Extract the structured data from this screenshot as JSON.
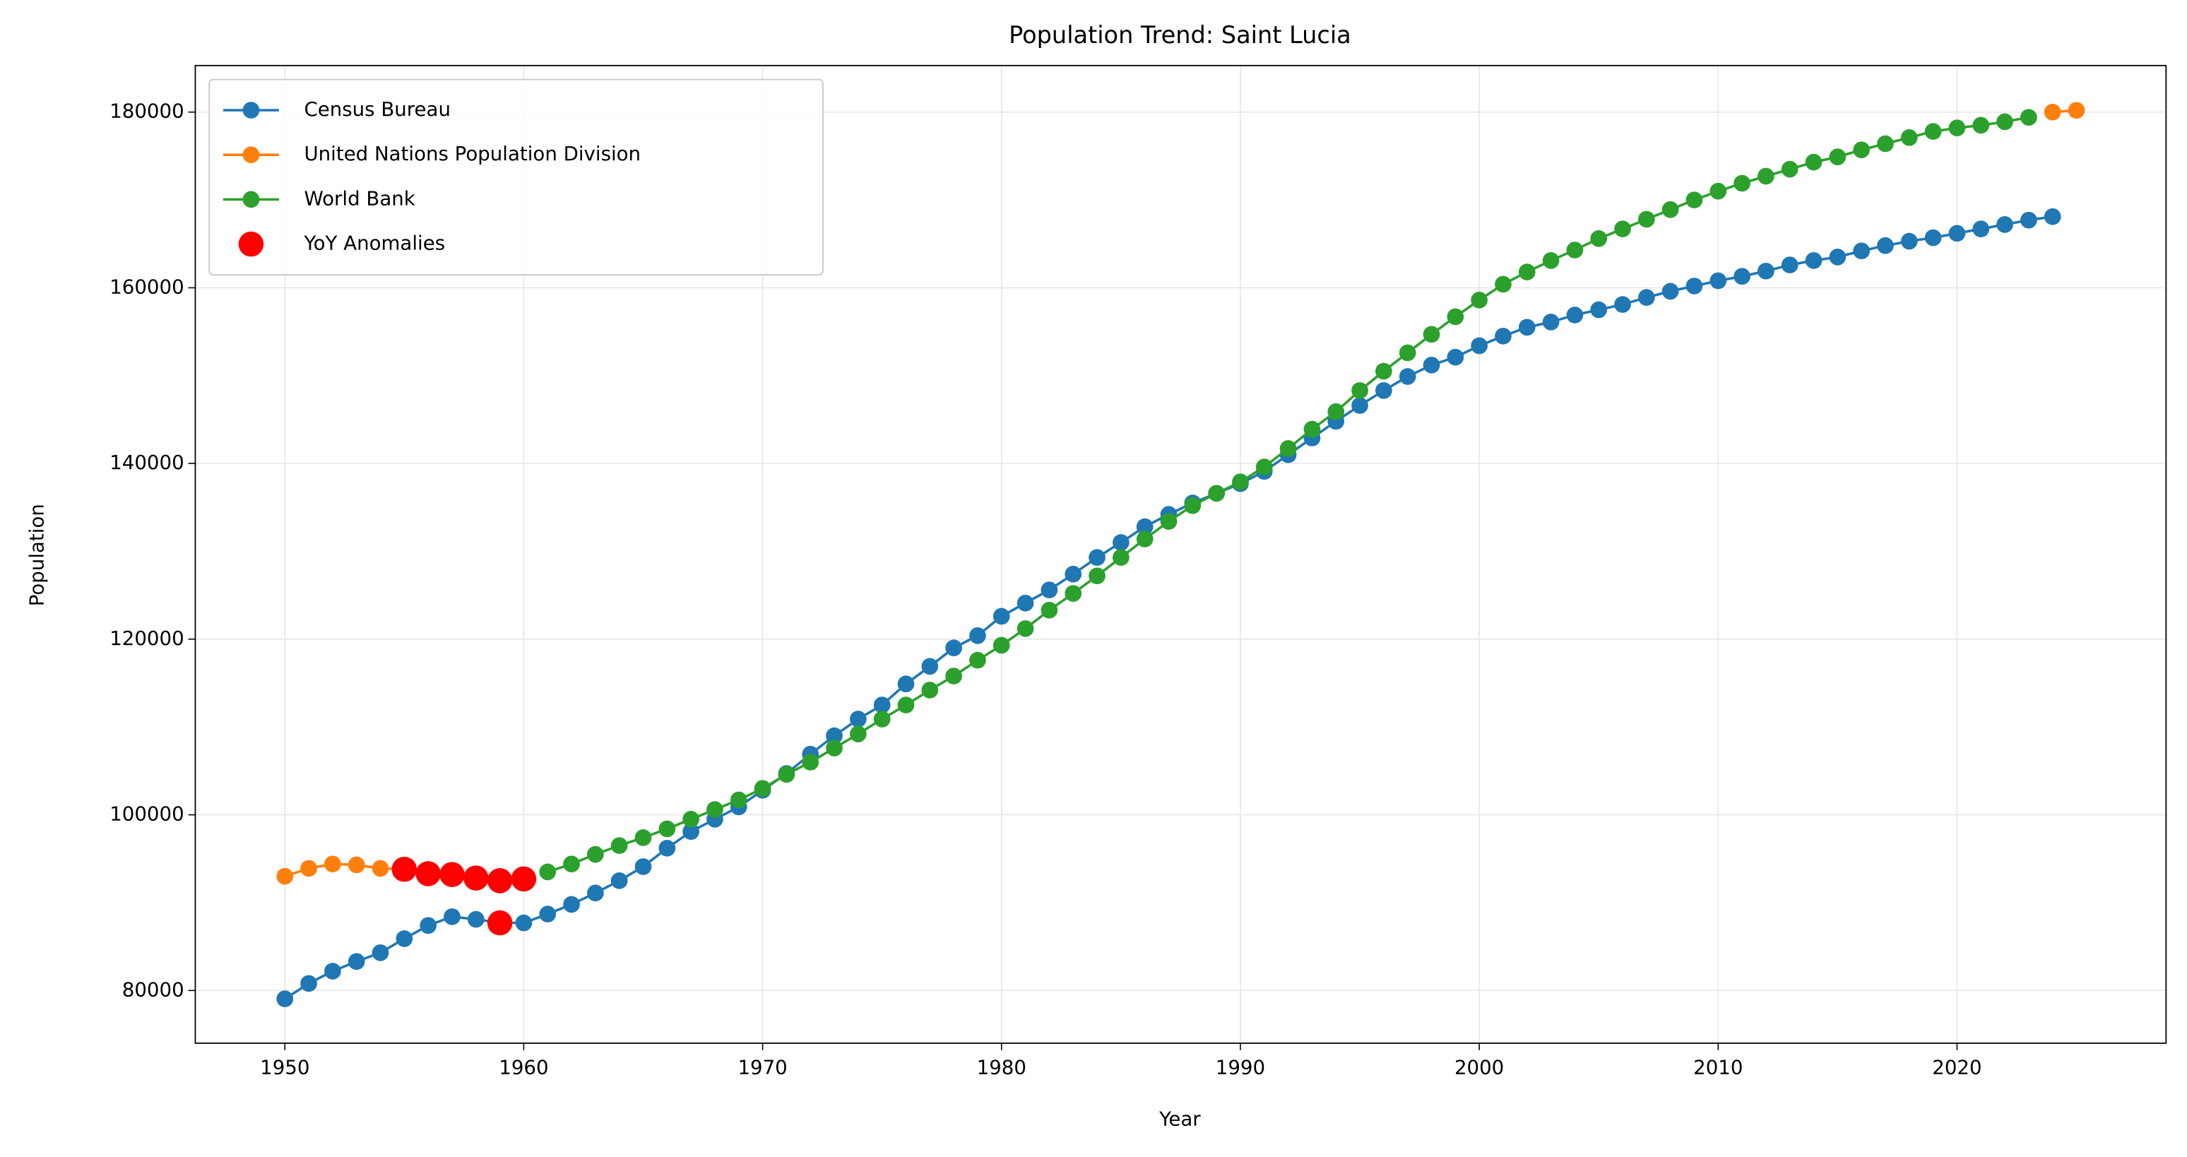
{
  "chart_data": {
    "type": "line",
    "title": "Population Trend: Saint Lucia",
    "x_label": "Year",
    "y_label": "Population",
    "x": [
      1950,
      1951,
      1952,
      1953,
      1954,
      1955,
      1956,
      1957,
      1958,
      1959,
      1960,
      1961,
      1962,
      1963,
      1964,
      1965,
      1966,
      1967,
      1968,
      1969,
      1970,
      1971,
      1972,
      1973,
      1974,
      1975,
      1976,
      1977,
      1978,
      1979,
      1980,
      1981,
      1982,
      1983,
      1984,
      1985,
      1986,
      1987,
      1988,
      1989,
      1990,
      1991,
      1992,
      1993,
      1994,
      1995,
      1996,
      1997,
      1998,
      1999,
      2000,
      2001,
      2002,
      2003,
      2004,
      2005,
      2006,
      2007,
      2008,
      2009,
      2010,
      2011,
      2012,
      2013,
      2014,
      2015,
      2016,
      2017,
      2018,
      2019,
      2020,
      2021,
      2022,
      2023,
      2024,
      2025
    ],
    "series": [
      {
        "name": "Census Bureau",
        "color": "#1f77b4",
        "values": [
          79050,
          80800,
          82200,
          83300,
          84300,
          85900,
          87400,
          88400,
          88100,
          87700,
          87700,
          88700,
          89800,
          91100,
          92500,
          94100,
          96200,
          98100,
          99500,
          100900,
          102800,
          104700,
          106900,
          109000,
          110900,
          112500,
          114900,
          116900,
          119000,
          120400,
          122600,
          124100,
          125600,
          127400,
          129300,
          131000,
          132800,
          134200,
          135500,
          136600,
          137700,
          139100,
          141000,
          142900,
          144800,
          146600,
          148300,
          149900,
          151200,
          152100,
          153400,
          154500,
          155500,
          156100,
          156900,
          157500,
          158100,
          158900,
          159600,
          160200,
          160800,
          161300,
          161900,
          162600,
          163100,
          163500,
          164200,
          164800,
          165300,
          165700,
          166200,
          166700,
          167200,
          167700,
          168100,
          null
        ]
      },
      {
        "name": "United Nations Population Division",
        "color": "#ff7f0e",
        "values": [
          93000,
          93900,
          94400,
          94300,
          93900,
          93800,
          93300,
          93200,
          92800,
          92500,
          92700,
          null,
          null,
          null,
          null,
          null,
          null,
          null,
          null,
          null,
          null,
          null,
          null,
          null,
          null,
          null,
          null,
          null,
          null,
          null,
          null,
          null,
          null,
          null,
          null,
          null,
          null,
          null,
          null,
          null,
          null,
          null,
          null,
          null,
          null,
          null,
          null,
          null,
          null,
          null,
          null,
          null,
          null,
          null,
          null,
          null,
          null,
          null,
          null,
          null,
          null,
          null,
          null,
          null,
          null,
          null,
          null,
          null,
          null,
          null,
          null,
          null,
          null,
          null,
          180000,
          180200
        ]
      },
      {
        "name": "World Bank",
        "color": "#2ca02c",
        "values": [
          null,
          null,
          null,
          null,
          null,
          null,
          null,
          null,
          null,
          null,
          null,
          93500,
          94400,
          95500,
          96500,
          97400,
          98400,
          99500,
          100600,
          101700,
          103000,
          104600,
          106000,
          107600,
          109200,
          110900,
          112500,
          114200,
          115800,
          117600,
          119300,
          121200,
          123300,
          125200,
          127200,
          129300,
          131400,
          133400,
          135200,
          136600,
          137900,
          139600,
          141700,
          143900,
          145900,
          148300,
          150500,
          152600,
          154700,
          156700,
          158600,
          160400,
          161800,
          163100,
          164300,
          165600,
          166700,
          167800,
          168900,
          170000,
          171000,
          171900,
          172700,
          173500,
          174300,
          174900,
          175700,
          176400,
          177100,
          177800,
          178200,
          178500,
          178900,
          179400,
          null,
          null
        ]
      }
    ],
    "anomalies": {
      "name": "YoY Anomalies",
      "color": "#ff0000",
      "x": [
        1955,
        1956,
        1957,
        1958,
        1959,
        1959,
        1960
      ],
      "values": [
        93800,
        93300,
        93200,
        92800,
        92500,
        87700,
        92700
      ]
    },
    "xlim": [
      1946.25,
      2028.75
    ],
    "ylim": [
      74000,
      185300
    ],
    "xticks": [
      1950,
      1960,
      1970,
      1980,
      1990,
      2000,
      2010,
      2020
    ],
    "yticks": [
      80000,
      100000,
      120000,
      140000,
      160000,
      180000
    ],
    "grid": true,
    "legend": "upper left"
  }
}
